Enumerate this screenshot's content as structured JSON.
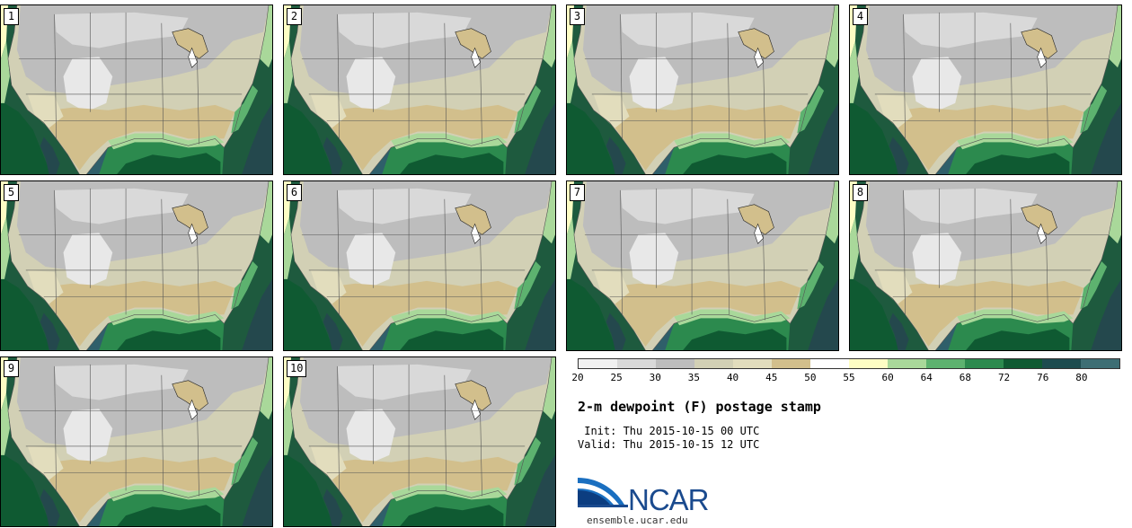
{
  "panels": [
    {
      "label": "1"
    },
    {
      "label": "2"
    },
    {
      "label": "3"
    },
    {
      "label": "4"
    },
    {
      "label": "5"
    },
    {
      "label": "6"
    },
    {
      "label": "7"
    },
    {
      "label": "8"
    },
    {
      "label": "9"
    },
    {
      "label": "10"
    }
  ],
  "colorbar": {
    "colors": [
      "#f0f0f0",
      "#d9d9d9",
      "#bdbdbd",
      "#d2d0b5",
      "#e2ddbd",
      "#d2bf8c",
      "#ffffff",
      "#fdfdc4",
      "#a9d89a",
      "#5db26f",
      "#2c8a4e",
      "#0f5a32",
      "#1d4c4f",
      "#3d6e74"
    ],
    "ticks": [
      "20",
      "25",
      "30",
      "35",
      "40",
      "45",
      "50",
      "55",
      "60",
      "64",
      "68",
      "72",
      "76",
      "80"
    ]
  },
  "title": "2-m dewpoint (F) postage stamp",
  "init": " Init: Thu 2015-10-15 00 UTC",
  "valid": "Valid: Thu 2015-10-15 12 UTC",
  "logo": {
    "text": "NCAR",
    "website": "ensemble.ucar.edu"
  }
}
